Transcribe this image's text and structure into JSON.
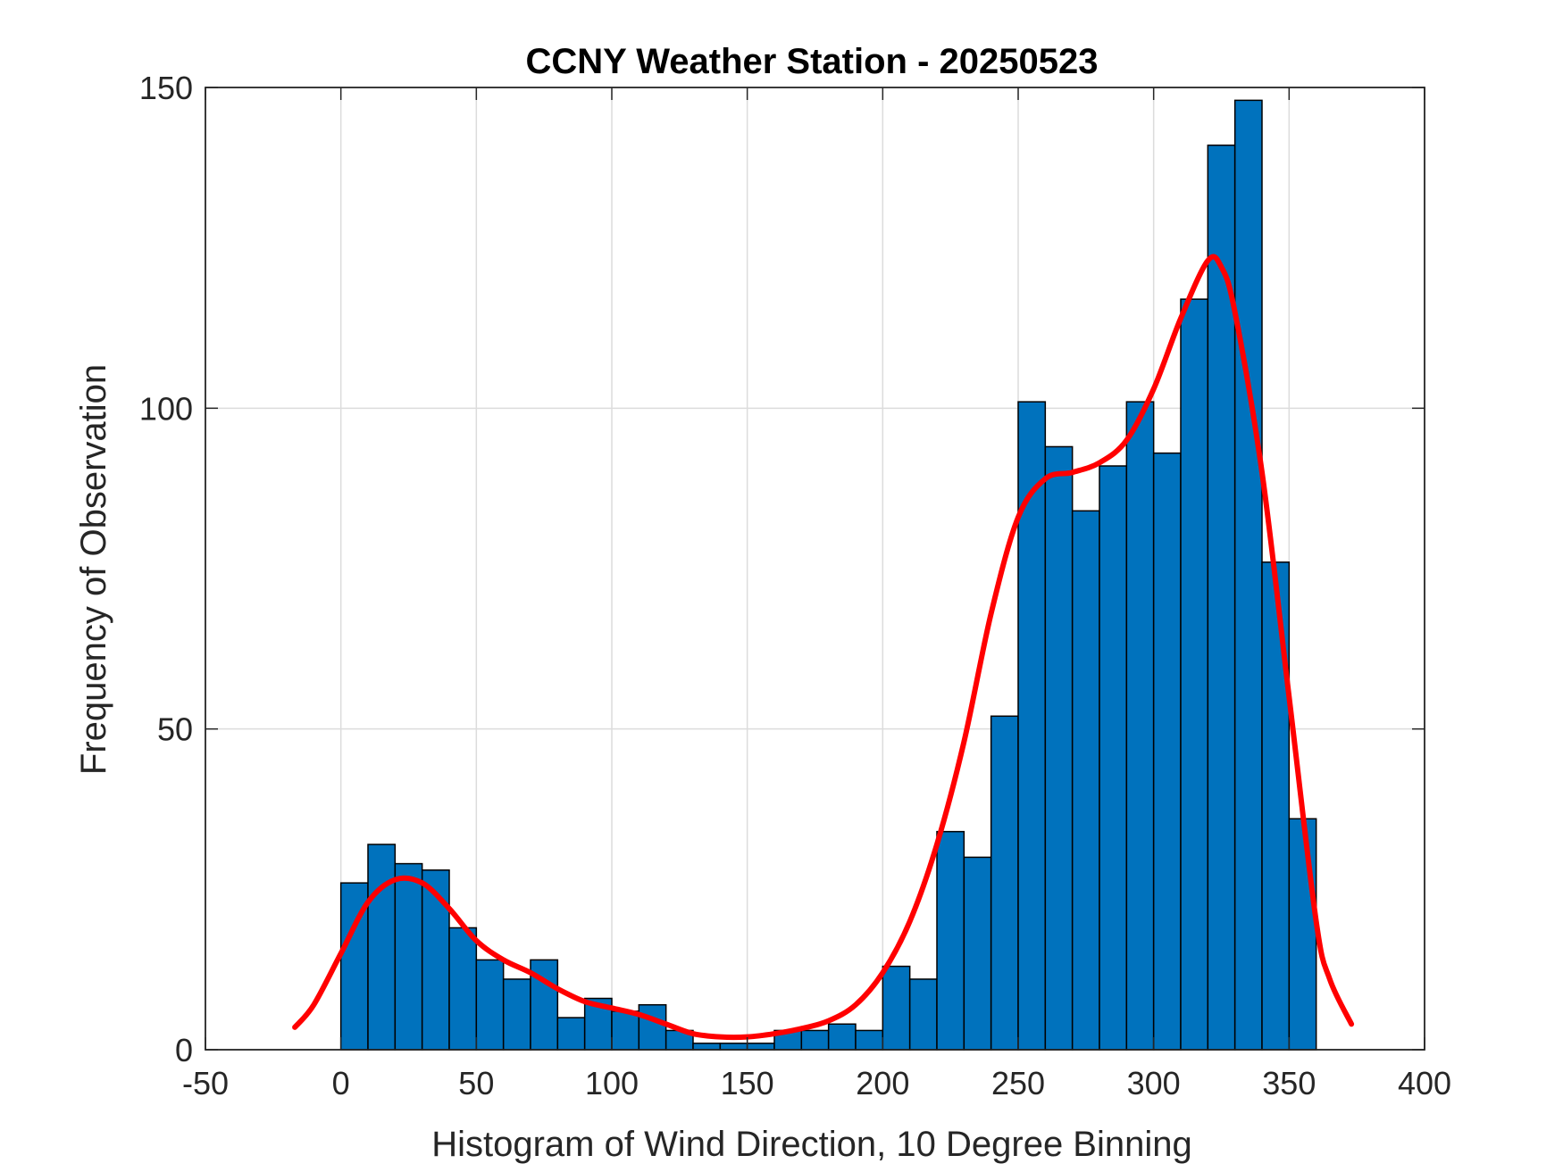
{
  "chart_data": {
    "type": "bar",
    "title": "CCNY Weather Station - 20250523",
    "xlabel": "Histogram of Wind Direction, 10 Degree Binning",
    "ylabel": "Frequency of Observation",
    "xlim": [
      -50,
      400
    ],
    "ylim": [
      0,
      150
    ],
    "xticks": [
      -50,
      0,
      50,
      100,
      150,
      200,
      250,
      300,
      350,
      400
    ],
    "yticks": [
      0,
      50,
      100,
      150
    ],
    "grid": true,
    "bar_color": "#0072BD",
    "fit_color": "#FF0000",
    "bin_width": 10,
    "bins": [
      {
        "x0": 0,
        "value": 26
      },
      {
        "x0": 10,
        "value": 32
      },
      {
        "x0": 20,
        "value": 29
      },
      {
        "x0": 30,
        "value": 28
      },
      {
        "x0": 40,
        "value": 19
      },
      {
        "x0": 50,
        "value": 14
      },
      {
        "x0": 60,
        "value": 11
      },
      {
        "x0": 70,
        "value": 14
      },
      {
        "x0": 80,
        "value": 5
      },
      {
        "x0": 90,
        "value": 8
      },
      {
        "x0": 100,
        "value": 6
      },
      {
        "x0": 110,
        "value": 7
      },
      {
        "x0": 120,
        "value": 3
      },
      {
        "x0": 130,
        "value": 1
      },
      {
        "x0": 140,
        "value": 1
      },
      {
        "x0": 150,
        "value": 1
      },
      {
        "x0": 160,
        "value": 3
      },
      {
        "x0": 170,
        "value": 3
      },
      {
        "x0": 180,
        "value": 4
      },
      {
        "x0": 190,
        "value": 3
      },
      {
        "x0": 200,
        "value": 13
      },
      {
        "x0": 210,
        "value": 11
      },
      {
        "x0": 220,
        "value": 34
      },
      {
        "x0": 230,
        "value": 30
      },
      {
        "x0": 240,
        "value": 52
      },
      {
        "x0": 250,
        "value": 101
      },
      {
        "x0": 260,
        "value": 94
      },
      {
        "x0": 270,
        "value": 84
      },
      {
        "x0": 280,
        "value": 91
      },
      {
        "x0": 290,
        "value": 101
      },
      {
        "x0": 300,
        "value": 93
      },
      {
        "x0": 310,
        "value": 117
      },
      {
        "x0": 320,
        "value": 141
      },
      {
        "x0": 330,
        "value": 148
      },
      {
        "x0": 340,
        "value": 76
      },
      {
        "x0": 350,
        "value": 36
      }
    ],
    "fit_curve": [
      [
        -17,
        3.5
      ],
      [
        -10,
        7
      ],
      [
        0,
        15
      ],
      [
        10,
        23
      ],
      [
        20,
        26.5
      ],
      [
        30,
        26
      ],
      [
        40,
        22
      ],
      [
        50,
        17
      ],
      [
        60,
        14
      ],
      [
        70,
        12
      ],
      [
        80,
        9.5
      ],
      [
        90,
        7.5
      ],
      [
        100,
        6.5
      ],
      [
        110,
        5.5
      ],
      [
        120,
        4
      ],
      [
        130,
        2.5
      ],
      [
        140,
        2
      ],
      [
        150,
        2
      ],
      [
        160,
        2.5
      ],
      [
        170,
        3.3
      ],
      [
        180,
        4.5
      ],
      [
        190,
        7
      ],
      [
        200,
        12
      ],
      [
        210,
        20
      ],
      [
        220,
        32
      ],
      [
        230,
        48
      ],
      [
        240,
        68
      ],
      [
        250,
        83
      ],
      [
        260,
        89
      ],
      [
        270,
        90
      ],
      [
        280,
        91.5
      ],
      [
        290,
        95
      ],
      [
        300,
        103
      ],
      [
        310,
        114
      ],
      [
        320,
        123
      ],
      [
        325,
        122
      ],
      [
        330,
        115
      ],
      [
        340,
        90
      ],
      [
        350,
        55
      ],
      [
        360,
        20
      ],
      [
        365,
        11
      ],
      [
        373,
        4
      ]
    ]
  }
}
